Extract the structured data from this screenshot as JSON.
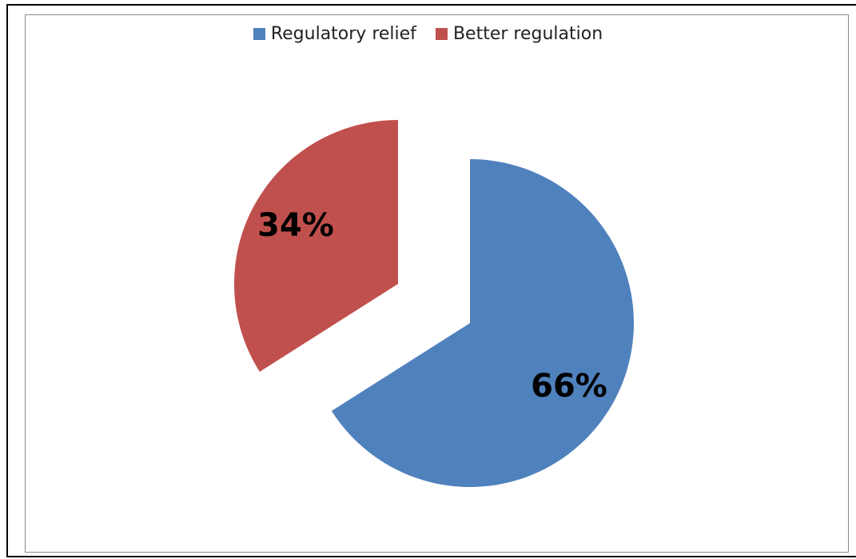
{
  "chart_data": {
    "type": "pie",
    "categories": [
      "Regulatory relief",
      "Better regulation"
    ],
    "values": [
      66,
      34
    ],
    "labels": [
      "66%",
      "34%"
    ],
    "colors": [
      "#4f81bd",
      "#c0504d"
    ],
    "legend_position": "top"
  }
}
